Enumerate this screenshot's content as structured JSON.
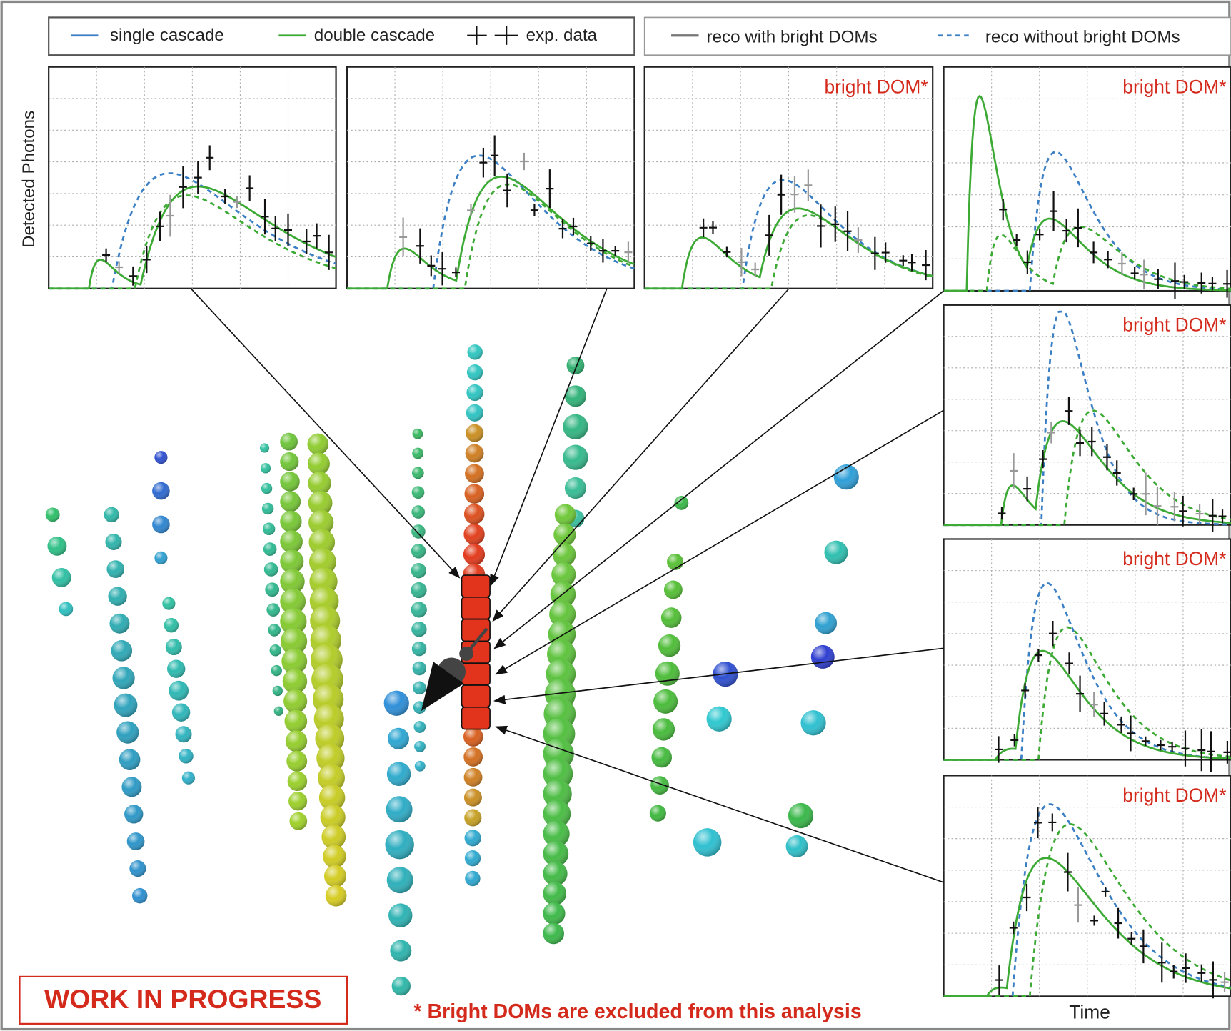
{
  "legend": {
    "items": [
      "single cascade",
      "double cascade",
      "exp. data",
      "reco with bright DOMs",
      "reco without bright DOMs"
    ]
  },
  "y_label": "Detected Photons",
  "x_label": "Time",
  "panel_notes": [
    "bright DOM*",
    "bright DOM*",
    "bright DOM*",
    "bright DOM*",
    "bright DOM*"
  ],
  "stamp": "WORK IN PROGRESS",
  "footnote": "* Bright DOMs are excluded from this analysis"
}
